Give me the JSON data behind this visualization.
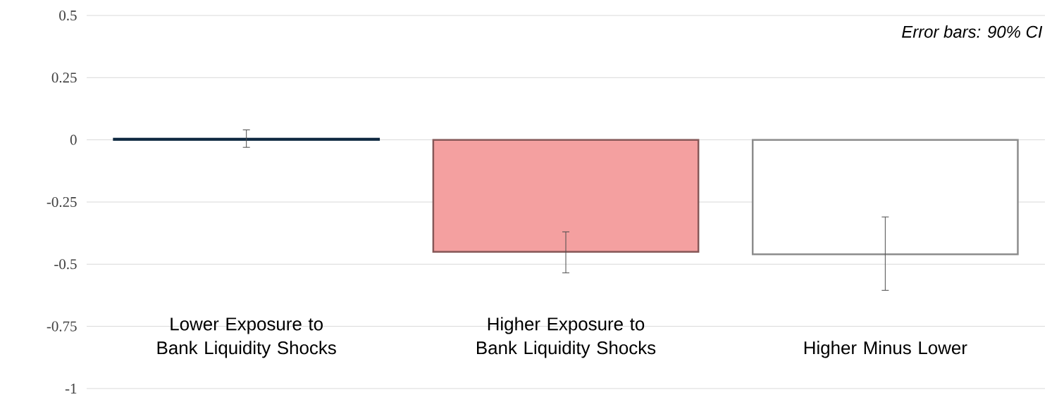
{
  "chart_data": {
    "type": "bar",
    "categories": [
      "Lower Exposure to Bank Liquidity Shocks",
      "Higher Exposure to Bank Liquidity Shocks",
      "Higher Minus Lower"
    ],
    "values": [
      0.005,
      -0.45,
      -0.46
    ],
    "colors": [
      "#1f4e79",
      "#f4a0a0",
      "#ffffff"
    ],
    "errors": [
      [
        -0.03,
        0.04
      ],
      [
        -0.535,
        -0.37
      ],
      [
        -0.605,
        -0.31
      ]
    ],
    "ylim": [
      -1,
      0.5
    ],
    "yticks": [
      -1,
      -0.75,
      -0.5,
      -0.25,
      0,
      0.25,
      0.5
    ],
    "grid": "y",
    "annotations": [
      "Error bars: 90% CI"
    ]
  }
}
